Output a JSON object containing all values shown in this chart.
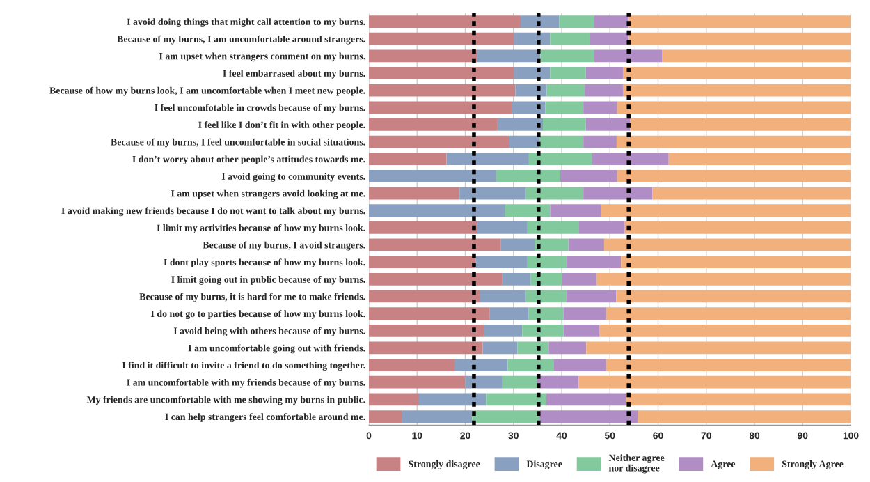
{
  "chart_data": {
    "type": "bar",
    "orientation": "horizontal",
    "stacked": true,
    "categories": [
      "I avoid doing things that might call attention to my burns.",
      "Because of my burns, I am uncomfortable around strangers.",
      "I am upset when strangers comment on my burns.",
      "I feel embarrased about my burns.",
      "Because of how my burns look, I am uncomfortable when I meet new people.",
      "I feel uncomfotable in crowds because of my burns.",
      "I feel like I don’t fit in with other people.",
      "Because of my burns, I feel uncomfortable in social situations.",
      "I don’t worry about other people’s attitudes towards me.",
      "I avoid going to community events.",
      "I am upset when strangers avoid looking at me.",
      "I avoid making new friends because I do not want to talk about my burns.",
      "I limit my activities because of how my burns look.",
      "Because of my burns, I avoid strangers.",
      "I dont play sports because of how my burns look.",
      "I limit going out in public because of my burns.",
      "Because of my burns, it is hard for me to make friends.",
      "I do not go to parties because of how my burns look.",
      "I avoid being with others because of my burns.",
      "I am uncomfortable going out with friends.",
      "I find it difficult to invite a friend to do something together.",
      "I am uncomfortable with my friends because of my burns.",
      "My friends are uncomfortable with me showing my burns in public.",
      "I can help strangers feel comfortable around me."
    ],
    "series": [
      {
        "name": "Strongly disagree",
        "color": "#c98283",
        "values": [
          31.5,
          30.1,
          22.5,
          30.1,
          30.4,
          29.6,
          26.7,
          29.1,
          16.1,
          0,
          18.8,
          0,
          22.4,
          27.4,
          22.2,
          27.7,
          23.1,
          25.0,
          23.9,
          23.6,
          17.9,
          20.0,
          10.4,
          6.9
        ]
      },
      {
        "name": "Disagree",
        "color": "#8aa0c0",
        "values": [
          8.0,
          7.5,
          13.1,
          7.5,
          6.5,
          7.0,
          9.4,
          6.4,
          17.1,
          26.4,
          13.7,
          28.3,
          10.5,
          7.0,
          10.7,
          5.9,
          9.4,
          8.1,
          7.9,
          7.2,
          10.9,
          7.7,
          13.9,
          14.5
        ]
      },
      {
        "name": "Neither agree\nnor disagree",
        "color": "#82c99d",
        "values": [
          7.2,
          8.3,
          11.1,
          7.4,
          7.9,
          7.9,
          8.9,
          9.0,
          13.1,
          13.3,
          12.0,
          9.3,
          10.6,
          7.0,
          8.1,
          6.5,
          8.5,
          7.3,
          8.6,
          6.5,
          9.5,
          7.2,
          12.5,
          14.0
        ]
      },
      {
        "name": "Agree",
        "color": "#b08dc4",
        "values": [
          7.2,
          8.0,
          14.1,
          7.7,
          7.9,
          7.0,
          9.2,
          6.9,
          15.9,
          11.8,
          14.3,
          10.6,
          9.5,
          7.4,
          11.3,
          7.1,
          10.3,
          8.8,
          7.4,
          7.8,
          10.9,
          8.6,
          16.6,
          20.4
        ]
      },
      {
        "name": "Strongly Agree",
        "color": "#f1b07c",
        "values": [
          46.1,
          46.1,
          39.2,
          47.3,
          47.3,
          48.5,
          45.8,
          48.6,
          37.8,
          48.5,
          41.2,
          51.8,
          47.0,
          51.2,
          47.7,
          52.8,
          48.7,
          50.8,
          52.2,
          54.9,
          50.8,
          56.5,
          46.6,
          44.2
        ]
      }
    ],
    "xlim": [
      0,
      100
    ],
    "xticks": [
      0,
      10,
      20,
      30,
      40,
      50,
      60,
      70,
      80,
      90,
      100
    ],
    "grid": "x",
    "legend": "bottom",
    "ref_lines": [
      {
        "axis": "x",
        "value": 21.8,
        "color": "#000000",
        "line_style": "dashed"
      },
      {
        "axis": "x",
        "value": 35.2,
        "color": "#000000",
        "line_style": "dashed"
      },
      {
        "axis": "x",
        "value": 53.9,
        "color": "#000000",
        "line_style": "dashed"
      }
    ]
  }
}
